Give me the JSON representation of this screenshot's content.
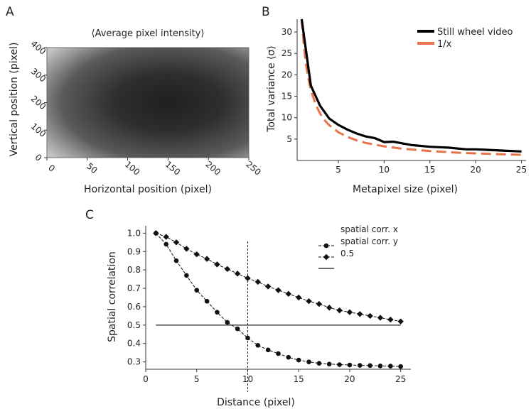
{
  "panels": {
    "A": {
      "label": "A",
      "title": "⟨Average pixel intensity⟩",
      "xlabel": "Horizontal position (pixel)",
      "ylabel": "Vertical position (pixel)",
      "xticks": [
        "0",
        "50",
        "100",
        "150",
        "200",
        "250"
      ],
      "yticks": [
        "0",
        "100",
        "200",
        "300",
        "400"
      ]
    },
    "B": {
      "label": "B"
    },
    "C": {
      "label": "C"
    }
  },
  "chart_data": [
    {
      "panel": "A",
      "type": "heatmap",
      "title": "⟨Average pixel intensity⟩",
      "xlabel": "Horizontal position (pixel)",
      "ylabel": "Vertical position (pixel)",
      "xlim": [
        0,
        250
      ],
      "ylim": [
        0,
        400
      ],
      "description_values": {
        "center_x": 150,
        "center_y": 200,
        "center_gray": "#222222",
        "corner_gray": "#c8c8c8"
      },
      "colormap": "gray"
    },
    {
      "panel": "B",
      "type": "line",
      "xlabel": "Metapixel size (pixel)",
      "ylabel": "Total variance ⟨σ⟩",
      "xlim": [
        0.5,
        25.5
      ],
      "ylim": [
        0,
        33
      ],
      "xticks": [
        5,
        10,
        15,
        20,
        25
      ],
      "yticks": [
        5,
        10,
        15,
        20,
        25,
        30
      ],
      "legend_position": "top-right",
      "series": [
        {
          "name": "Still wheel video",
          "color": "#000000",
          "style": "solid",
          "x": [
            1,
            2,
            3,
            4,
            5,
            6,
            7,
            8,
            9,
            10,
            11,
            12,
            13,
            14,
            15,
            16,
            17,
            18,
            19,
            20,
            21,
            22,
            23,
            24,
            25
          ],
          "y": [
            33,
            17.5,
            12.8,
            9.8,
            8.3,
            7.2,
            6.3,
            5.6,
            5.2,
            4.3,
            4.4,
            4.0,
            3.6,
            3.4,
            3.2,
            3.1,
            3.0,
            2.8,
            2.6,
            2.6,
            2.5,
            2.4,
            2.3,
            2.2,
            2.1
          ]
        },
        {
          "name": "1/x",
          "color": "#e8734a",
          "style": "dashed",
          "x": [
            1,
            1.25,
            1.5,
            1.75,
            2,
            2.5,
            3,
            3.5,
            4,
            5,
            6,
            7,
            8,
            10,
            12,
            15,
            18,
            21,
            25
          ],
          "y": [
            33,
            26.4,
            22,
            18.9,
            16.5,
            13.2,
            11,
            9.4,
            8.25,
            6.6,
            5.5,
            4.7,
            4.1,
            3.3,
            2.75,
            2.2,
            1.83,
            1.57,
            1.32
          ]
        }
      ]
    },
    {
      "panel": "C",
      "type": "line",
      "xlabel": "Distance (pixel)",
      "ylabel": "Spatial correlation",
      "xlim": [
        0,
        26
      ],
      "ylim": [
        0.26,
        1.04
      ],
      "xticks": [
        0,
        5,
        10,
        15,
        20,
        25
      ],
      "yticks": [
        0.3,
        0.4,
        0.5,
        0.6,
        0.7,
        0.8,
        0.9,
        1.0
      ],
      "vline_x": 10,
      "hline_y": 0.5,
      "hline_x": [
        1,
        25
      ],
      "legend_position": "top-right",
      "legend_labels": [
        "spatial corr. x",
        "spatial corr. y",
        "0.5"
      ],
      "series": [
        {
          "name": "spatial corr. x",
          "marker": "circle",
          "x": [
            1,
            2,
            3,
            4,
            5,
            6,
            7,
            8,
            9,
            10,
            11,
            12,
            13,
            14,
            15,
            16,
            17,
            18,
            19,
            20,
            21,
            22,
            23,
            24,
            25
          ],
          "y": [
            1.0,
            0.94,
            0.85,
            0.77,
            0.69,
            0.63,
            0.57,
            0.515,
            0.48,
            0.43,
            0.39,
            0.365,
            0.345,
            0.325,
            0.31,
            0.3,
            0.292,
            0.288,
            0.285,
            0.283,
            0.281,
            0.28,
            0.278,
            0.277,
            0.275
          ]
        },
        {
          "name": "spatial corr. y",
          "marker": "diamond",
          "x": [
            1,
            2,
            3,
            4,
            5,
            6,
            7,
            8,
            9,
            10,
            11,
            12,
            13,
            14,
            15,
            16,
            17,
            18,
            19,
            20,
            21,
            22,
            23,
            24,
            25
          ],
          "y": [
            1.0,
            0.98,
            0.95,
            0.915,
            0.885,
            0.86,
            0.83,
            0.805,
            0.78,
            0.755,
            0.735,
            0.71,
            0.69,
            0.67,
            0.65,
            0.63,
            0.615,
            0.595,
            0.58,
            0.57,
            0.56,
            0.55,
            0.54,
            0.53,
            0.52
          ]
        }
      ]
    }
  ]
}
